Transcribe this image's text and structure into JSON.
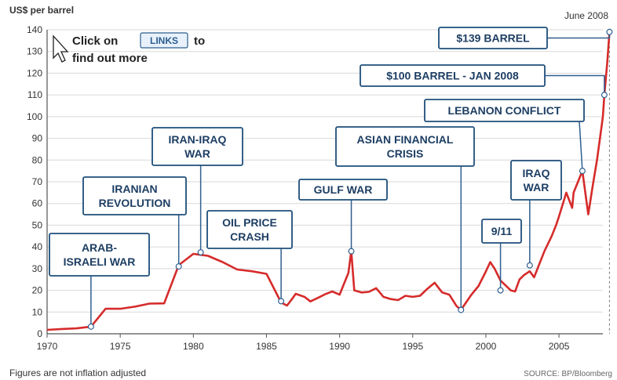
{
  "chart_data": {
    "type": "line",
    "unit_label": "US$ per barrel",
    "corner_label": "June 2008",
    "footnote": "Figures are not inflation adjusted",
    "source": "SOURCE: BP/Bloomberg",
    "xlim": [
      1970,
      2008
    ],
    "ylim": [
      0,
      140
    ],
    "x_ticks": [
      1970,
      1975,
      1980,
      1985,
      1990,
      1995,
      2000,
      2005
    ],
    "y_ticks": [
      0,
      10,
      20,
      30,
      40,
      50,
      60,
      70,
      80,
      90,
      100,
      110,
      120,
      130,
      140
    ],
    "grid": "horizontal",
    "line_color": "#d62b2b",
    "series": [
      {
        "points": [
          [
            1970,
            1.8
          ],
          [
            1971,
            2.2
          ],
          [
            1972,
            2.5
          ],
          [
            1973,
            3.3
          ],
          [
            1974,
            11.5
          ],
          [
            1975,
            11.5
          ],
          [
            1976,
            12.5
          ],
          [
            1977,
            13.9
          ],
          [
            1978,
            14.0
          ],
          [
            1979,
            31.6
          ],
          [
            1980,
            36.8
          ],
          [
            1981,
            35.9
          ],
          [
            1982,
            33.0
          ],
          [
            1983,
            29.6
          ],
          [
            1984,
            28.8
          ],
          [
            1985,
            27.6
          ],
          [
            1986,
            14.4
          ],
          [
            1986.4,
            13.0
          ],
          [
            1986.8,
            16.5
          ],
          [
            1987,
            18.4
          ],
          [
            1987.6,
            17.0
          ],
          [
            1988,
            14.9
          ],
          [
            1988.5,
            16.5
          ],
          [
            1989,
            18.2
          ],
          [
            1989.5,
            19.5
          ],
          [
            1990,
            18.0
          ],
          [
            1990.6,
            28.0
          ],
          [
            1990.8,
            38.0
          ],
          [
            1991,
            20.0
          ],
          [
            1991.5,
            19.0
          ],
          [
            1992,
            19.3
          ],
          [
            1992.5,
            21.0
          ],
          [
            1993,
            17.0
          ],
          [
            1993.5,
            16.0
          ],
          [
            1994,
            15.5
          ],
          [
            1994.5,
            17.5
          ],
          [
            1995,
            17.0
          ],
          [
            1995.5,
            17.5
          ],
          [
            1996,
            20.7
          ],
          [
            1996.5,
            23.5
          ],
          [
            1997,
            19.1
          ],
          [
            1997.5,
            18.0
          ],
          [
            1998,
            12.7
          ],
          [
            1998.3,
            11.0
          ],
          [
            1998.5,
            13.0
          ],
          [
            1999,
            17.9
          ],
          [
            1999.5,
            22.0
          ],
          [
            2000,
            28.7
          ],
          [
            2000.3,
            33.0
          ],
          [
            2000.6,
            30.0
          ],
          [
            2001,
            24.5
          ],
          [
            2001.7,
            20.0
          ],
          [
            2002,
            19.5
          ],
          [
            2002.3,
            25.0
          ],
          [
            2002.6,
            27.0
          ],
          [
            2003,
            28.8
          ],
          [
            2003.3,
            26.0
          ],
          [
            2004,
            38.0
          ],
          [
            2004.5,
            45.0
          ],
          [
            2004.8,
            50.0
          ],
          [
            2005,
            54.0
          ],
          [
            2005.5,
            65.0
          ],
          [
            2005.9,
            58.0
          ],
          [
            2006,
            65.0
          ],
          [
            2006.3,
            70.0
          ],
          [
            2006.6,
            75.0
          ],
          [
            2006.9,
            60.0
          ],
          [
            2007,
            55.0
          ],
          [
            2007.3,
            68.0
          ],
          [
            2007.6,
            80.0
          ],
          [
            2007.8,
            90.0
          ],
          [
            2008,
            100.0
          ],
          [
            2008.1,
            110.0
          ],
          [
            2008.3,
            125.0
          ],
          [
            2008.45,
            139.0
          ]
        ]
      }
    ],
    "annotations": [
      {
        "label": "ARAB-\nISRAELI WAR",
        "x": 1973,
        "y": 3.3
      },
      {
        "label": "IRANIAN\nREVOLUTION",
        "x": 1979,
        "y": 31.0
      },
      {
        "label": "IRAN-IRAQ\nWAR",
        "x": 1980.5,
        "y": 37.5
      },
      {
        "label": "OIL PRICE\nCRASH",
        "x": 1986,
        "y": 15.0
      },
      {
        "label": "GULF WAR",
        "x": 1990.8,
        "y": 38.0
      },
      {
        "label": "ASIAN FINANCIAL\nCRISIS",
        "x": 1998.3,
        "y": 11.0
      },
      {
        "label": "9/11",
        "x": 2001,
        "y": 20.0
      },
      {
        "label": "IRAQ\nWAR",
        "x": 2003,
        "y": 31.5
      },
      {
        "label": "LEBANON CONFLICT",
        "x": 2006.6,
        "y": 75.0
      },
      {
        "label": "$100 BARREL - JAN 2008",
        "x": 2008.1,
        "y": 110.0
      },
      {
        "label": "$139 BARREL",
        "x": 2008.45,
        "y": 139.0
      }
    ],
    "hint": {
      "before": "Click on",
      "link": "LINKS",
      "after_1": "to",
      "after_2": "find out more"
    }
  }
}
